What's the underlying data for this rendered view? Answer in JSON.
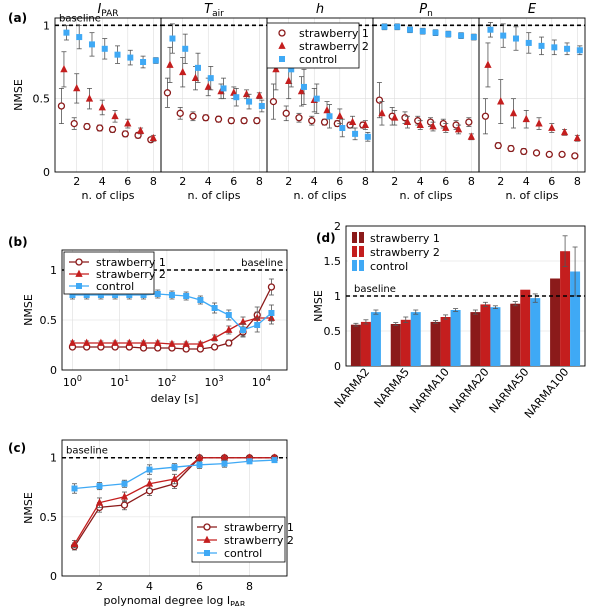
{
  "colors": {
    "s1": "#8b1a1a",
    "s2": "#c41e1e",
    "control": "#3fa9f5",
    "baseline": "#000000"
  },
  "chart_data": [
    {
      "id": "a",
      "panel_label": "(a)",
      "type": "scatter",
      "ylabel": "NMSE",
      "ylim": [
        0,
        1.05
      ],
      "yticks": [
        "0",
        "0.5",
        "1"
      ],
      "baseline_label": "baseline",
      "legend": [
        "strawberry 1",
        "strawberry 2",
        "control"
      ],
      "subplots": [
        {
          "title": "I_PAR",
          "title_main": "I",
          "title_sub": "PAR",
          "xlabel": "n. of clips",
          "xticks": [
            "2",
            "4",
            "6",
            "8"
          ],
          "x": [
            1,
            2,
            3,
            4,
            5,
            6,
            7,
            8
          ],
          "series": [
            {
              "name": "strawberry 1",
              "values": [
                0.45,
                0.33,
                0.31,
                0.3,
                0.29,
                0.26,
                0.25,
                0.22
              ],
              "err": [
                0.12,
                0.04,
                0.02,
                0.02,
                0.02,
                0.02,
                0.02,
                0.01
              ]
            },
            {
              "name": "strawberry 2",
              "values": [
                0.7,
                0.57,
                0.5,
                0.44,
                0.38,
                0.33,
                0.28,
                0.23
              ],
              "err": [
                0.12,
                0.1,
                0.07,
                0.05,
                0.04,
                0.03,
                0.02,
                0.02
              ]
            },
            {
              "name": "control",
              "values": [
                0.95,
                0.92,
                0.87,
                0.84,
                0.8,
                0.78,
                0.75,
                0.76
              ],
              "err": [
                0.05,
                0.08,
                0.08,
                0.07,
                0.06,
                0.05,
                0.04,
                0.02
              ]
            }
          ]
        },
        {
          "title": "T_air",
          "title_main": "T",
          "title_sub": "air",
          "xlabel": "n. of clips",
          "xticks": [
            "2",
            "4",
            "6",
            "8"
          ],
          "x": [
            1,
            2,
            3,
            4,
            5,
            6,
            7,
            8
          ],
          "series": [
            {
              "name": "strawberry 1",
              "values": [
                0.54,
                0.4,
                0.38,
                0.37,
                0.36,
                0.35,
                0.35,
                0.35
              ],
              "err": [
                0.1,
                0.04,
                0.03,
                0.02,
                0.02,
                0.02,
                0.02,
                0.02
              ]
            },
            {
              "name": "strawberry 2",
              "values": [
                0.73,
                0.68,
                0.64,
                0.58,
                0.55,
                0.54,
                0.53,
                0.52
              ],
              "err": [
                0.12,
                0.1,
                0.08,
                0.06,
                0.05,
                0.04,
                0.03,
                0.02
              ]
            },
            {
              "name": "control",
              "values": [
                0.91,
                0.84,
                0.71,
                0.64,
                0.57,
                0.51,
                0.48,
                0.45
              ],
              "err": [
                0.1,
                0.1,
                0.1,
                0.08,
                0.07,
                0.06,
                0.05,
                0.04
              ]
            }
          ]
        },
        {
          "title": "h",
          "title_main": "h",
          "title_sub": "",
          "xlabel": "n. of clips",
          "xticks": [
            "2",
            "4",
            "6",
            "8"
          ],
          "x": [
            1,
            2,
            3,
            4,
            5,
            6,
            7,
            8
          ],
          "series": [
            {
              "name": "strawberry 1",
              "values": [
                0.48,
                0.4,
                0.37,
                0.35,
                0.34,
                0.33,
                0.32,
                0.32
              ],
              "err": [
                0.12,
                0.05,
                0.03,
                0.03,
                0.02,
                0.02,
                0.02,
                0.02
              ]
            },
            {
              "name": "strawberry 2",
              "values": [
                0.7,
                0.62,
                0.55,
                0.49,
                0.42,
                0.38,
                0.34,
                0.32
              ],
              "err": [
                0.14,
                0.12,
                0.1,
                0.08,
                0.06,
                0.05,
                0.04,
                0.03
              ]
            },
            {
              "name": "control",
              "values": [
                0.84,
                0.7,
                0.58,
                0.5,
                0.38,
                0.3,
                0.26,
                0.24
              ],
              "err": [
                0.1,
                0.12,
                0.12,
                0.1,
                0.08,
                0.06,
                0.04,
                0.03
              ]
            }
          ]
        },
        {
          "title": "P_n",
          "title_main": "P",
          "title_sub": "n",
          "xlabel": "n. of clips",
          "xticks": [
            "2",
            "4",
            "6",
            "8"
          ],
          "x": [
            1,
            2,
            3,
            4,
            5,
            6,
            7,
            8
          ],
          "series": [
            {
              "name": "strawberry 1",
              "values": [
                0.49,
                0.38,
                0.37,
                0.35,
                0.34,
                0.33,
                0.32,
                0.34
              ],
              "err": [
                0.12,
                0.06,
                0.04,
                0.03,
                0.03,
                0.03,
                0.03,
                0.03
              ]
            },
            {
              "name": "strawberry 2",
              "values": [
                0.4,
                0.37,
                0.34,
                0.32,
                0.31,
                0.3,
                0.29,
                0.24
              ],
              "err": [
                0.08,
                0.05,
                0.04,
                0.03,
                0.03,
                0.03,
                0.03,
                0.02
              ]
            },
            {
              "name": "control",
              "values": [
                0.99,
                0.99,
                0.97,
                0.96,
                0.95,
                0.94,
                0.93,
                0.92
              ],
              "err": [
                0.02,
                0.02,
                0.02,
                0.02,
                0.02,
                0.02,
                0.02,
                0.02
              ]
            }
          ]
        },
        {
          "title": "E",
          "title_main": "E",
          "title_sub": "",
          "xlabel": "n. of clips",
          "xticks": [
            "2",
            "4",
            "6",
            "8"
          ],
          "x": [
            1,
            2,
            3,
            4,
            5,
            6,
            7,
            8
          ],
          "series": [
            {
              "name": "strawberry 1",
              "values": [
                0.38,
                0.18,
                0.16,
                0.14,
                0.13,
                0.12,
                0.12,
                0.11
              ],
              "err": [
                0.12,
                0.02,
                0.02,
                0.02,
                0.01,
                0.01,
                0.01,
                0.01
              ]
            },
            {
              "name": "strawberry 2",
              "values": [
                0.73,
                0.48,
                0.4,
                0.36,
                0.33,
                0.3,
                0.27,
                0.23
              ],
              "err": [
                0.15,
                0.15,
                0.1,
                0.06,
                0.04,
                0.03,
                0.02,
                0.02
              ]
            },
            {
              "name": "control",
              "values": [
                0.97,
                0.93,
                0.91,
                0.88,
                0.86,
                0.85,
                0.84,
                0.83
              ],
              "err": [
                0.05,
                0.08,
                0.08,
                0.07,
                0.06,
                0.05,
                0.04,
                0.03
              ]
            }
          ]
        }
      ]
    },
    {
      "id": "b",
      "panel_label": "(b)",
      "type": "line",
      "xlabel": "delay [s]",
      "ylabel": "NMSE",
      "xscale": "log",
      "xlim": [
        0.6,
        35000
      ],
      "ylim": [
        0,
        1.2
      ],
      "xticks": [
        {
          "v": 1,
          "base": "10",
          "exp": "0"
        },
        {
          "v": 10,
          "base": "10",
          "exp": "1"
        },
        {
          "v": 100,
          "base": "10",
          "exp": "2"
        },
        {
          "v": 1000,
          "base": "10",
          "exp": "3"
        },
        {
          "v": 10000,
          "base": "10",
          "exp": "4"
        }
      ],
      "yticks": [
        0,
        0.5,
        1
      ],
      "ytick_labels": [
        "0",
        "0.5",
        "1"
      ],
      "baseline": 1,
      "baseline_label": "baseline",
      "legend_position": "top-left",
      "x": [
        1,
        2,
        4,
        8,
        16,
        32,
        64,
        128,
        256,
        512,
        1024,
        2048,
        4096,
        8192,
        16384
      ],
      "series": [
        {
          "name": "strawberry 1",
          "marker": "circle",
          "values": [
            0.23,
            0.23,
            0.23,
            0.23,
            0.23,
            0.22,
            0.22,
            0.22,
            0.21,
            0.21,
            0.23,
            0.27,
            0.38,
            0.55,
            0.83
          ],
          "err": [
            0.02,
            0.02,
            0.02,
            0.02,
            0.02,
            0.02,
            0.02,
            0.02,
            0.02,
            0.02,
            0.02,
            0.03,
            0.05,
            0.08,
            0.08
          ]
        },
        {
          "name": "strawberry 2",
          "marker": "triangle",
          "values": [
            0.27,
            0.27,
            0.27,
            0.27,
            0.27,
            0.27,
            0.27,
            0.26,
            0.26,
            0.26,
            0.32,
            0.4,
            0.48,
            0.52,
            0.52
          ],
          "err": [
            0.02,
            0.02,
            0.02,
            0.02,
            0.02,
            0.02,
            0.02,
            0.02,
            0.02,
            0.02,
            0.03,
            0.04,
            0.05,
            0.06,
            0.06
          ]
        },
        {
          "name": "control",
          "marker": "square",
          "values": [
            0.75,
            0.75,
            0.75,
            0.75,
            0.75,
            0.75,
            0.76,
            0.75,
            0.74,
            0.7,
            0.62,
            0.55,
            0.4,
            0.45,
            0.57
          ],
          "err": [
            0.04,
            0.04,
            0.04,
            0.04,
            0.04,
            0.04,
            0.04,
            0.04,
            0.04,
            0.04,
            0.05,
            0.05,
            0.06,
            0.07,
            0.08
          ]
        }
      ]
    },
    {
      "id": "c",
      "panel_label": "(c)",
      "type": "line",
      "xlabel": "polynomal degree log I_PAR",
      "xlabel_main": "polynomal degree log I",
      "xlabel_sub": "PAR",
      "ylabel": "NMSE",
      "xlim": [
        0.5,
        9.5
      ],
      "ylim": [
        0,
        1.15
      ],
      "xticks": [
        2,
        4,
        6,
        8
      ],
      "yticks": [
        0,
        0.5,
        1
      ],
      "ytick_labels": [
        "0",
        "0.5",
        "1"
      ],
      "baseline": 1,
      "baseline_label": "baseline",
      "legend_position": "bottom-right",
      "x": [
        1,
        2,
        3,
        4,
        5,
        6,
        7,
        8,
        9
      ],
      "series": [
        {
          "name": "strawberry 1",
          "marker": "circle",
          "values": [
            0.25,
            0.58,
            0.6,
            0.72,
            0.78,
            1.0,
            1.0,
            1.0,
            1.0
          ],
          "err": [
            0.03,
            0.04,
            0.04,
            0.04,
            0.04,
            0.02,
            0.01,
            0.01,
            0.01
          ]
        },
        {
          "name": "strawberry 2",
          "marker": "triangle",
          "values": [
            0.27,
            0.62,
            0.67,
            0.78,
            0.82,
            1.0,
            1.0,
            1.0,
            1.0
          ],
          "err": [
            0.03,
            0.04,
            0.04,
            0.04,
            0.04,
            0.02,
            0.01,
            0.01,
            0.01
          ]
        },
        {
          "name": "control",
          "marker": "square",
          "values": [
            0.74,
            0.76,
            0.78,
            0.9,
            0.92,
            0.94,
            0.95,
            0.97,
            0.98
          ],
          "err": [
            0.04,
            0.03,
            0.03,
            0.04,
            0.03,
            0.03,
            0.03,
            0.02,
            0.02
          ]
        }
      ]
    },
    {
      "id": "d",
      "panel_label": "(d)",
      "type": "bar",
      "ylabel": "NMSE",
      "ylim": [
        0,
        2
      ],
      "yticks": [
        0,
        0.5,
        1,
        1.5,
        2
      ],
      "ytick_labels": [
        "0",
        "0.5",
        "1",
        "1.5",
        "2"
      ],
      "baseline": 1,
      "baseline_label": "baseline",
      "legend_position": "top-left",
      "categories": [
        "NARMA2",
        "NARMA5",
        "NARMA10",
        "NARMA20",
        "NARMA50",
        "NARMA100"
      ],
      "series": [
        {
          "name": "strawberry 1",
          "values": [
            0.59,
            0.6,
            0.63,
            0.77,
            0.89,
            1.25
          ],
          "err": [
            0.02,
            0.02,
            0.02,
            0.03,
            0.03,
            0.0
          ]
        },
        {
          "name": "strawberry 2",
          "values": [
            0.63,
            0.66,
            0.7,
            0.88,
            1.09,
            1.64
          ],
          "err": [
            0.03,
            0.04,
            0.03,
            0.03,
            0.0,
            0.22
          ]
        },
        {
          "name": "control",
          "values": [
            0.77,
            0.77,
            0.8,
            0.84,
            0.97,
            1.35
          ],
          "err": [
            0.03,
            0.03,
            0.02,
            0.02,
            0.06,
            0.35
          ]
        }
      ]
    }
  ]
}
